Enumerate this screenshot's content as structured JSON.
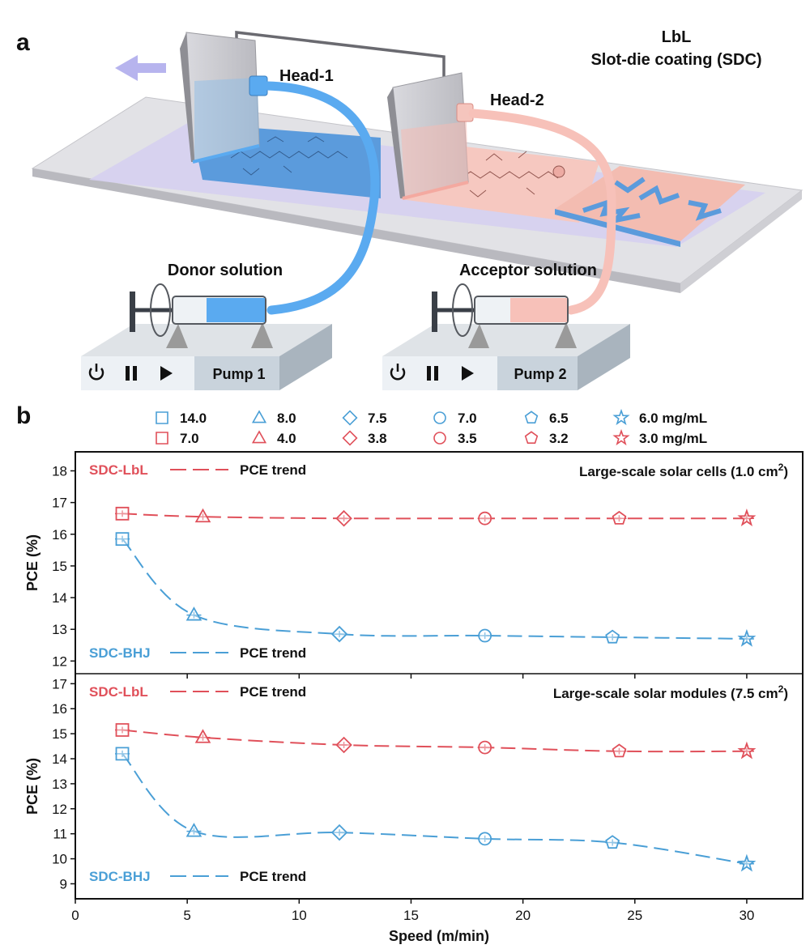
{
  "panel_a": {
    "label": "a",
    "title_line1": "LbL",
    "title_line2": "Slot-die coating (SDC)",
    "head1": "Head-1",
    "head2": "Head-2",
    "donor": "Donor solution",
    "acceptor": "Acceptor solution",
    "pump1": "Pump 1",
    "pump2": "Pump 2",
    "colors": {
      "donor": "#5aaaf0",
      "acceptor": "#f7c1b9",
      "film_donor": "#5b9bdc",
      "film_acceptor": "#f6c8c0"
    }
  },
  "panel_b": {
    "label": "b",
    "legend": {
      "blue": [
        "14.0",
        "8.0",
        "7.5",
        "7.0",
        "6.5",
        "6.0 mg/mL"
      ],
      "red": [
        "7.0",
        "4.0",
        "3.8",
        "3.5",
        "3.2",
        "3.0 mg/mL"
      ],
      "markers": [
        "square",
        "triangle",
        "diamond",
        "circle",
        "pentagon",
        "star"
      ]
    },
    "colors": {
      "lbl": "#e0505a",
      "bhj": "#4a9fd6"
    },
    "xlabel": "Speed (m/min)",
    "xticks": [
      "0",
      "5",
      "10",
      "15",
      "20",
      "25",
      "30"
    ],
    "xlim": [
      0,
      32.5
    ]
  },
  "chart_data": [
    {
      "type": "scatter",
      "title": "Large-scale solar cells (1.0 cm²)",
      "title_main": "Large-scale solar cells (1.0 cm",
      "title_sup": "2",
      "title_end": ")",
      "ylabel": "PCE (%)",
      "ylim": [
        11.6,
        18.6
      ],
      "yticks": [
        "12",
        "13",
        "14",
        "15",
        "16",
        "17",
        "18"
      ],
      "ytick_values": [
        12,
        13,
        14,
        15,
        16,
        17,
        18
      ],
      "label_lbl": "SDC-LbL",
      "label_bhj": "SDC-BHJ",
      "trend_label_lbl": "PCE trend",
      "trend_label_bhj": "PCE trend",
      "series": [
        {
          "name": "SDC-LbL",
          "x": [
            2.1,
            5.7,
            12.0,
            18.3,
            24.3,
            30.0
          ],
          "y": [
            16.65,
            16.55,
            16.5,
            16.5,
            16.5,
            16.5
          ]
        },
        {
          "name": "SDC-BHJ",
          "x": [
            2.1,
            5.3,
            11.8,
            18.3,
            24.0,
            30.0
          ],
          "y": [
            15.85,
            13.45,
            12.85,
            12.8,
            12.75,
            12.7
          ]
        }
      ]
    },
    {
      "type": "scatter",
      "title": "Large-scale solar modules (7.5 cm²)",
      "title_main": "Large-scale solar modules (7.5 cm",
      "title_sup": "2",
      "title_end": ")",
      "ylabel": "PCE (%)",
      "ylim": [
        8.4,
        17.4
      ],
      "yticks": [
        "9",
        "10",
        "11",
        "12",
        "13",
        "14",
        "15",
        "16",
        "17"
      ],
      "ytick_values": [
        9,
        10,
        11,
        12,
        13,
        14,
        15,
        16,
        17
      ],
      "label_lbl": "SDC-LbL",
      "label_bhj": "SDC-BHJ",
      "trend_label_lbl": "PCE trend",
      "trend_label_bhj": "PCE trend",
      "series": [
        {
          "name": "SDC-LbL",
          "x": [
            2.1,
            5.7,
            12.0,
            18.3,
            24.3,
            30.0
          ],
          "y": [
            15.15,
            14.85,
            14.55,
            14.45,
            14.3,
            14.3
          ]
        },
        {
          "name": "SDC-BHJ",
          "x": [
            2.1,
            5.3,
            11.8,
            18.3,
            24.0,
            30.0
          ],
          "y": [
            14.2,
            11.1,
            11.05,
            10.8,
            10.65,
            9.8
          ]
        }
      ]
    }
  ]
}
